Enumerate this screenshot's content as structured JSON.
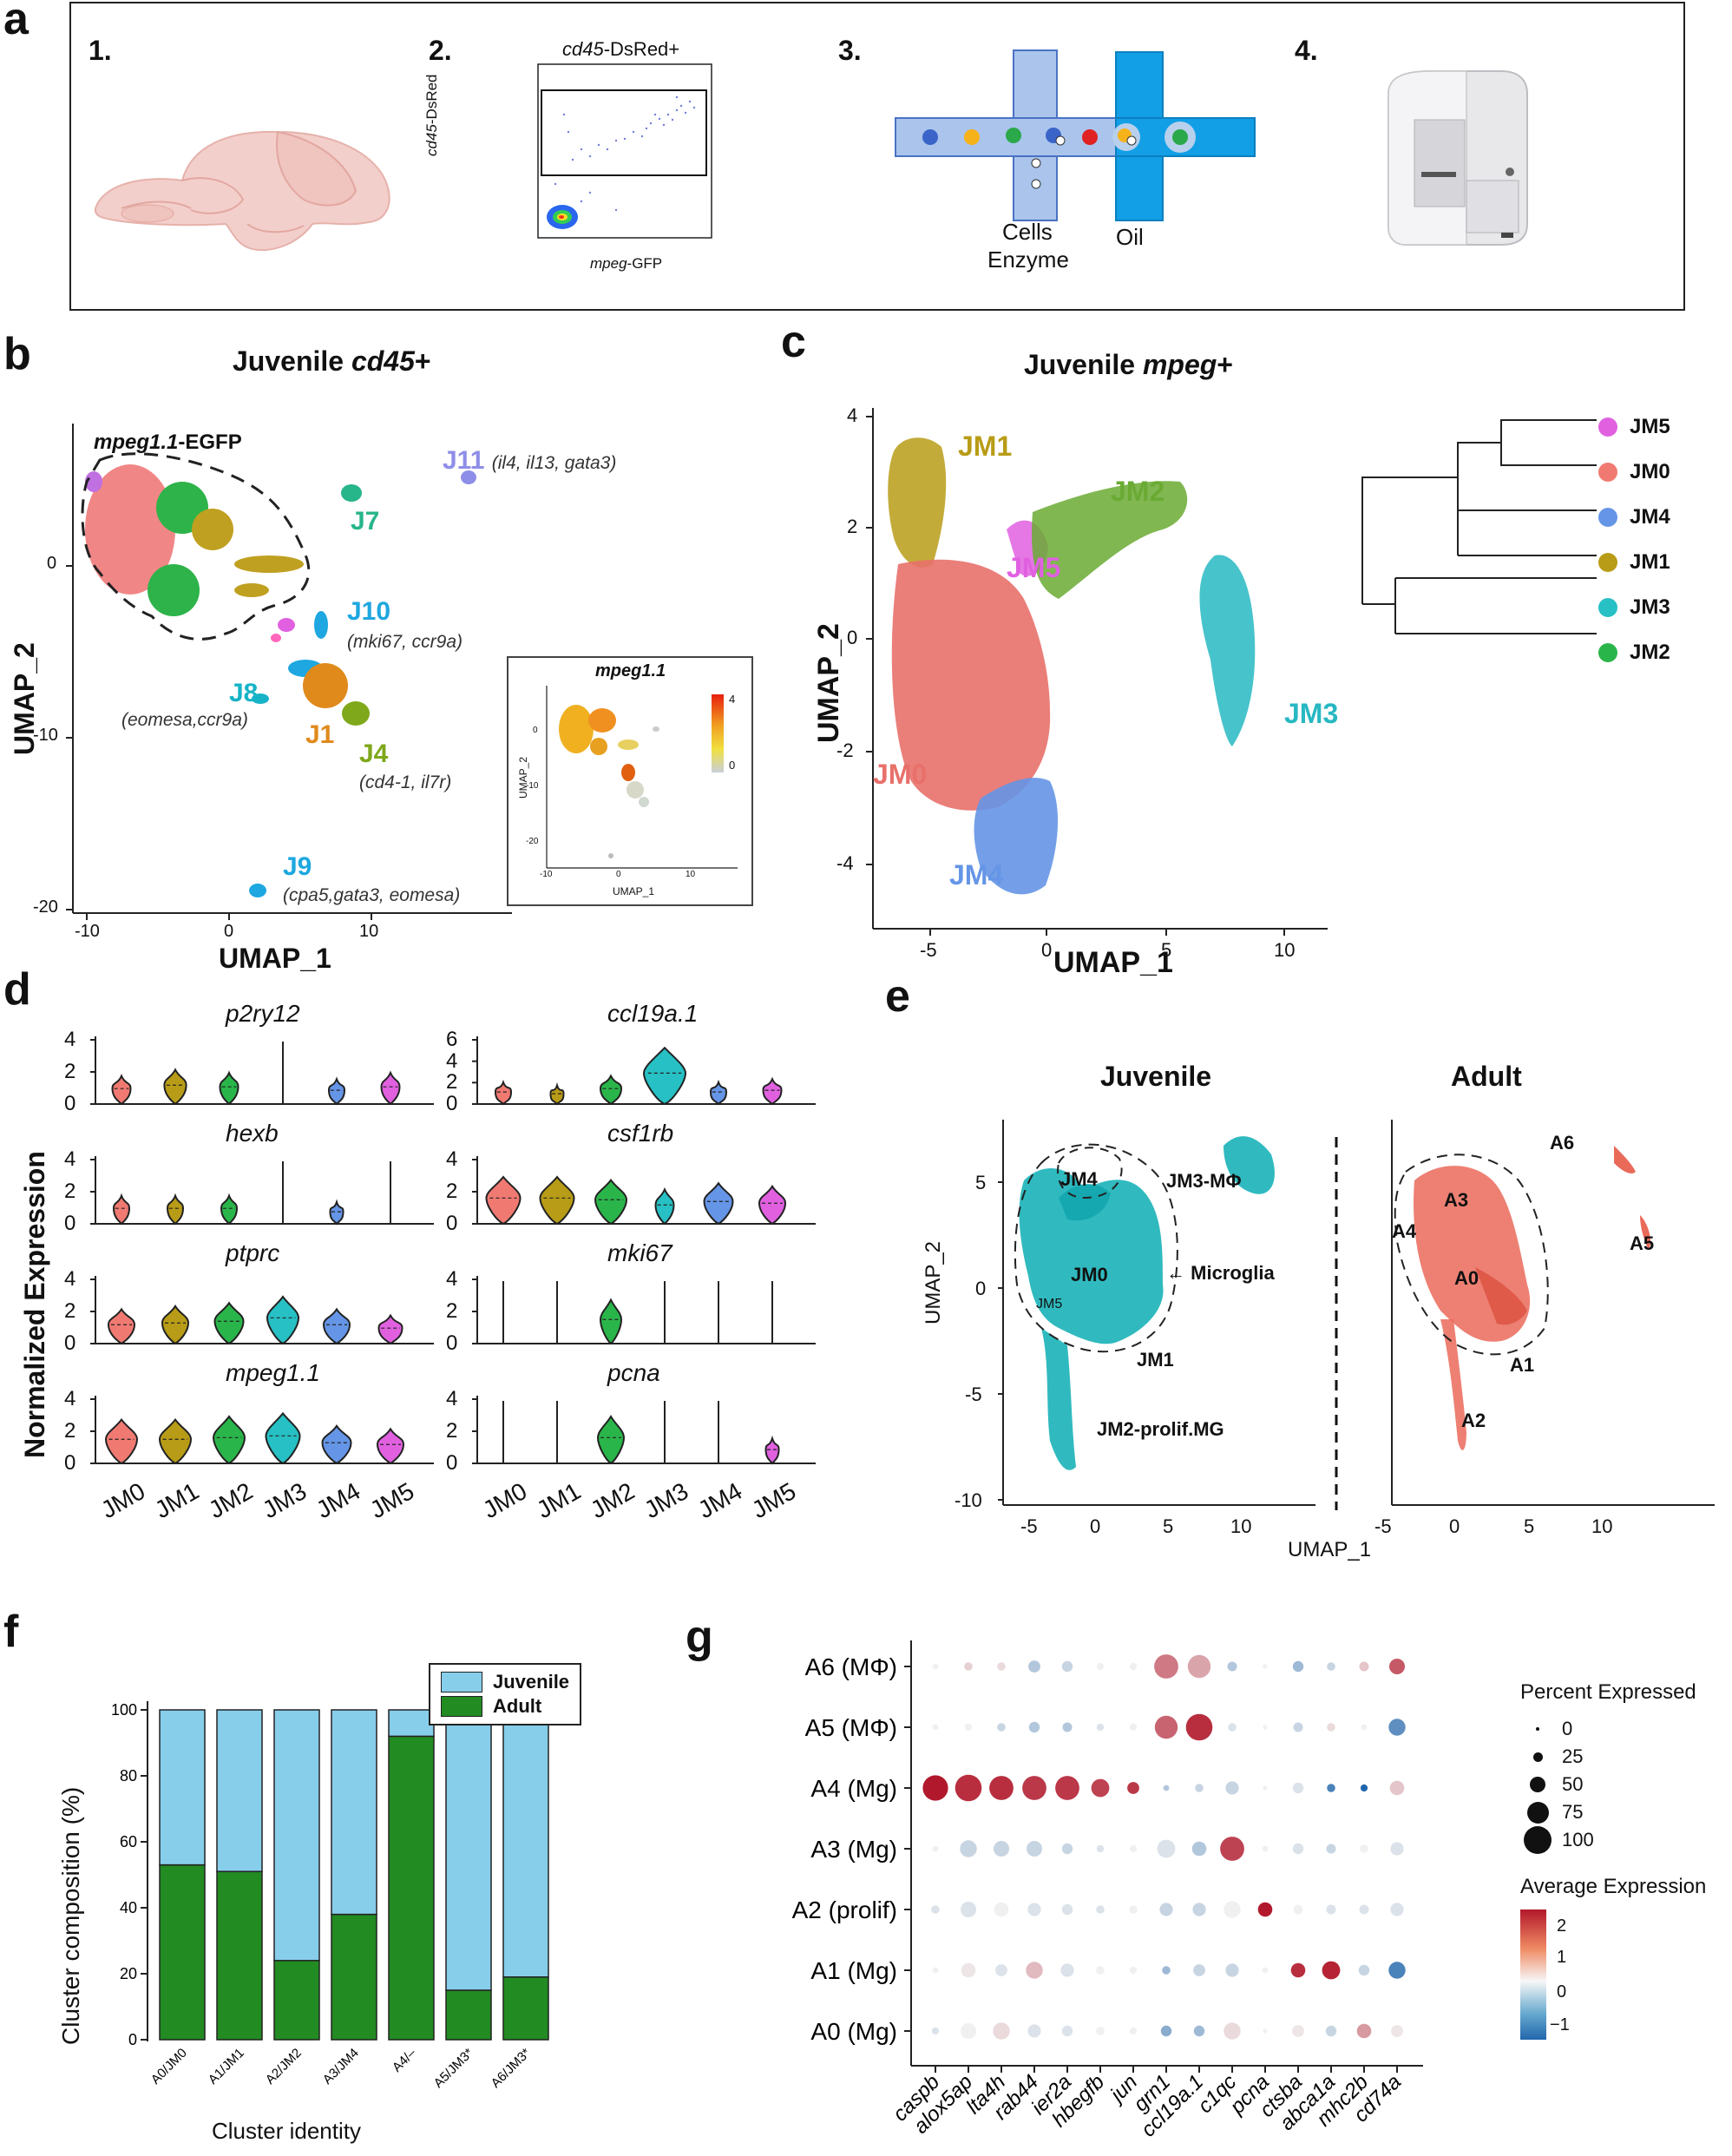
{
  "panels": {
    "a": {
      "letter": "a",
      "steps": [
        "1.",
        "2.",
        "3.",
        "4."
      ],
      "facs": {
        "title_gene": "cd45",
        "title_rest": "-DsRed+",
        "ylabel_gene": "cd45",
        "ylabel_rest": "-DsRed",
        "xlabel_gene": "mpeg",
        "xlabel_rest": "-GFP"
      },
      "microfluidics": {
        "cells_label": "Cells",
        "enzyme_label": "Enzyme",
        "oil_label": "Oil"
      }
    },
    "b": {
      "letter": "b",
      "title_prefix": "Juvenile ",
      "title_gene": "cd45",
      "title_suffix": "+",
      "xlabel": "UMAP_1",
      "ylabel": "UMAP_2",
      "xticks": [
        "-10",
        "0",
        "10"
      ],
      "yticks": [
        "0",
        "-10",
        "-20"
      ],
      "outline_label_gene": "mpeg1.1",
      "outline_label_rest": "-EGFP",
      "clusters": [
        {
          "name": "J11",
          "note": "(il4, il13, gata3)",
          "color": "#8e8ee8"
        },
        {
          "name": "J7",
          "note": "",
          "color": "#27b58a"
        },
        {
          "name": "J10",
          "note": "(mki67, ccr9a)",
          "color": "#1ea7e0"
        },
        {
          "name": "J8",
          "note": "(eomesa,ccr9a)",
          "color": "#16b3c7"
        },
        {
          "name": "J1",
          "note": "",
          "color": "#e08a1c"
        },
        {
          "name": "J4",
          "note": "(cd4-1, il7r)",
          "color": "#7fa81b"
        },
        {
          "name": "J9",
          "note": "(cpa5,gata3, eomesa)",
          "color": "#1ea7e0"
        }
      ],
      "inset": {
        "title": "mpeg1.1",
        "xlabel": "UMAP_1",
        "ylabel": "UMAP_2",
        "scale_max": "4",
        "scale_min": "0",
        "xticks": [
          "-10",
          "0",
          "10"
        ],
        "yticks": [
          "0",
          "-10",
          "-20"
        ]
      }
    },
    "c": {
      "letter": "c",
      "title_prefix": "Juvenile ",
      "title_gene": "mpeg",
      "title_suffix": "+",
      "xlabel": "UMAP_1",
      "ylabel": "UMAP_2",
      "xticks": [
        "-5",
        "0",
        "5",
        "10"
      ],
      "yticks": [
        "4",
        "2",
        "0",
        "-2",
        "-4"
      ],
      "clusters": [
        {
          "name": "JM1",
          "color": "#b89c17"
        },
        {
          "name": "JM5",
          "color": "#e060e0"
        },
        {
          "name": "JM2",
          "color": "#6aaa33"
        },
        {
          "name": "JM3",
          "color": "#27b8c2"
        },
        {
          "name": "JM0",
          "color": "#e8706a"
        },
        {
          "name": "JM4",
          "color": "#6595e6"
        }
      ],
      "dendrogram_order": [
        {
          "name": "JM5",
          "color": "#e060e0"
        },
        {
          "name": "JM0",
          "color": "#f07a72"
        },
        {
          "name": "JM4",
          "color": "#6595e6"
        },
        {
          "name": "JM1",
          "color": "#b89c17"
        },
        {
          "name": "JM3",
          "color": "#27c0c4"
        },
        {
          "name": "JM2",
          "color": "#2ab54a"
        }
      ]
    },
    "d": {
      "letter": "d",
      "ylabel": "Normalized Expression",
      "categories": [
        "JM0",
        "JM1",
        "JM2",
        "JM3",
        "JM4",
        "JM5"
      ],
      "colors": [
        "#f07a72",
        "#b89c17",
        "#2ab54a",
        "#27c0c4",
        "#6595e6",
        "#e060e0"
      ],
      "genes_left": [
        {
          "gene": "p2ry12",
          "yticks": [
            "4",
            "2",
            "0"
          ]
        },
        {
          "gene": "hexb",
          "yticks": [
            "4",
            "2",
            "0"
          ]
        },
        {
          "gene": "ptprc",
          "yticks": [
            "4",
            "2",
            "0"
          ]
        },
        {
          "gene": "mpeg1.1",
          "yticks": [
            "4",
            "2",
            "0"
          ]
        }
      ],
      "genes_right": [
        {
          "gene": "ccl19a.1",
          "yticks": [
            "6",
            "4",
            "2",
            "0"
          ]
        },
        {
          "gene": "csf1rb",
          "yticks": [
            "4",
            "2",
            "0"
          ]
        },
        {
          "gene": "mki67",
          "yticks": [
            "4",
            "2",
            "0"
          ]
        },
        {
          "gene": "pcna",
          "yticks": [
            "4",
            "2",
            "0"
          ]
        }
      ]
    },
    "e": {
      "letter": "e",
      "juvenile_title": "Juvenile",
      "adult_title": "Adult",
      "xlabel": "UMAP_1",
      "ylabel": "UMAP_2",
      "xticks_juv": [
        "-5",
        "0",
        "5",
        "10"
      ],
      "xticks_adult": [
        "-5",
        "0",
        "5",
        "10"
      ],
      "yticks": [
        "5",
        "0",
        "-5",
        "-10"
      ],
      "juvenile_labels": [
        "JM4",
        "JM3-MΦ",
        "JM0",
        "Microglia",
        "JM5",
        "JM1",
        "JM2-prolif.MG"
      ],
      "adult_labels": [
        "A6",
        "A3",
        "A4",
        "A0",
        "A5",
        "A1",
        "A2"
      ]
    },
    "f": {
      "letter": "f",
      "ylabel": "Cluster composition (%)",
      "xlabel": "Cluster identity",
      "legend": [
        {
          "label": "Juvenile",
          "color": "#87ceeb"
        },
        {
          "label": "Adult",
          "color": "#228b22"
        }
      ]
    },
    "g": {
      "letter": "g",
      "rows": [
        "A6 (MΦ)",
        "A5 (MΦ)",
        "A4 (Mg)",
        "A3 (Mg)",
        "A2 (prolif)",
        "A1 (Mg)",
        "A0 (Mg)"
      ],
      "genes": [
        "caspb",
        "alox5ap",
        "lta4h",
        "rab44",
        "ier2a",
        "hbegfb",
        "jun",
        "grn1",
        "ccl19a.1",
        "c1qc",
        "pcna",
        "ctsba",
        "abca1a",
        "mhc2b",
        "cd74a"
      ],
      "size_legend_title": "Percent Expressed",
      "size_legend": [
        "0",
        "25",
        "50",
        "75",
        "100"
      ],
      "color_legend_title": "Average Expression",
      "color_legend": [
        "2",
        "1",
        "0",
        "−1"
      ]
    }
  },
  "chart_data": [
    {
      "type": "bar",
      "title": "",
      "xlabel": "Cluster identity",
      "ylabel": "Cluster composition (%)",
      "ylim": [
        0,
        100
      ],
      "yticks": [
        "0",
        "20",
        "40",
        "60",
        "80",
        "100"
      ],
      "categories": [
        "A0/JM0",
        "A1/JM1",
        "A2/JM2",
        "A3/JM4",
        "A4/–",
        "A5/JM3*",
        "A6/JM3*"
      ],
      "series": [
        {
          "name": "Adult",
          "color": "#228b22",
          "values": [
            53,
            51,
            24,
            38,
            92,
            15,
            19
          ]
        },
        {
          "name": "Juvenile",
          "color": "#87ceeb",
          "values": [
            47,
            49,
            76,
            62,
            8,
            85,
            81
          ]
        }
      ],
      "stacked": true,
      "legend": "top-right"
    }
  ]
}
